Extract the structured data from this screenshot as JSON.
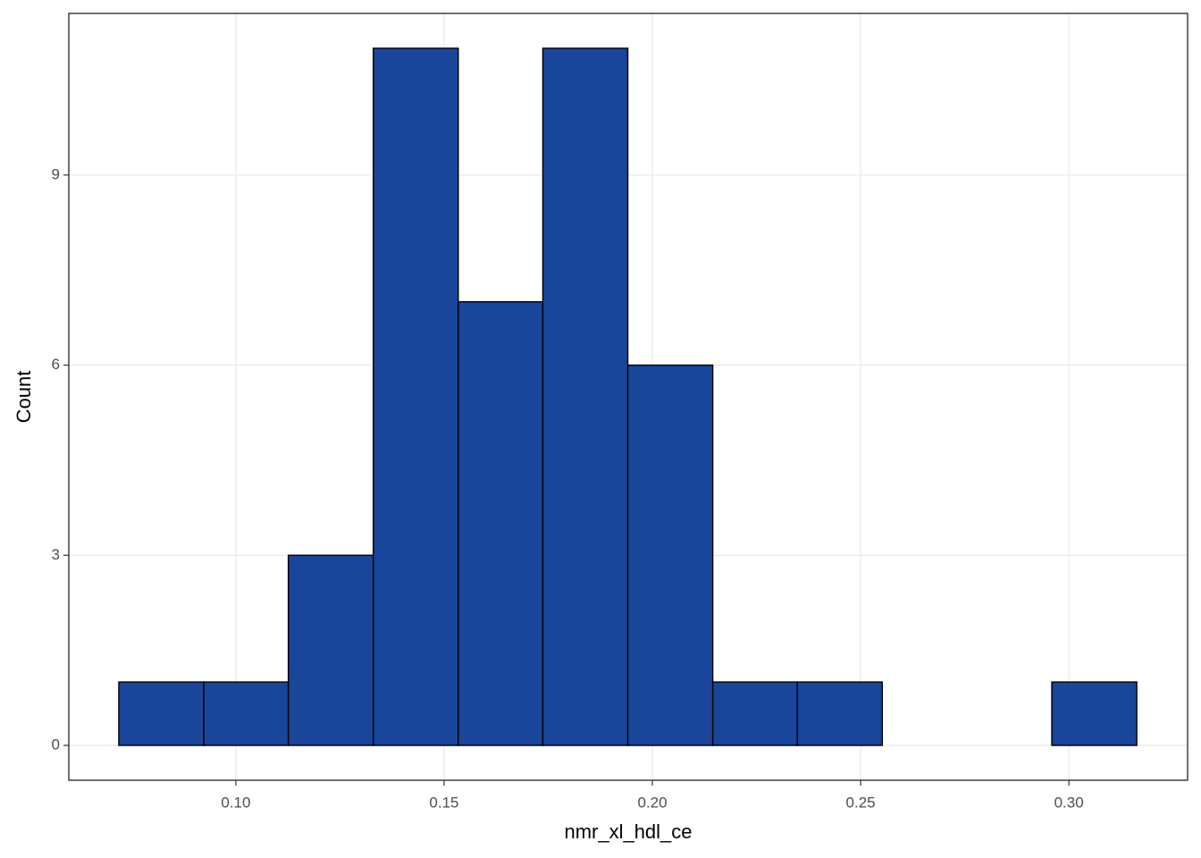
{
  "chart_data": {
    "type": "histogram",
    "x_label": "nmr_xl_hdl_ce",
    "y_label": "Count",
    "bins": [
      0.0719,
      0.0923,
      0.1126,
      0.133,
      0.1534,
      0.1737,
      0.1941,
      0.2145,
      0.2348,
      0.2552,
      0.2756,
      0.2959,
      0.3163
    ],
    "counts": [
      1,
      1,
      3,
      11,
      7,
      11,
      6,
      1,
      1,
      0,
      0,
      1
    ],
    "color": "#19459a",
    "edge_color": "#000000",
    "xlim": [
      0.0599,
      0.3285
    ],
    "xticks": [
      {
        "value": 0.1,
        "label": "0.10"
      },
      0.15,
      {
        "value": 0.2,
        "label": "0.20"
      },
      0.25,
      {
        "value": 0.3,
        "label": "0.30"
      }
    ],
    "ylim": [
      -0.55,
      11.55
    ],
    "yticks": [
      0,
      3,
      6,
      9
    ],
    "grid": true
  }
}
